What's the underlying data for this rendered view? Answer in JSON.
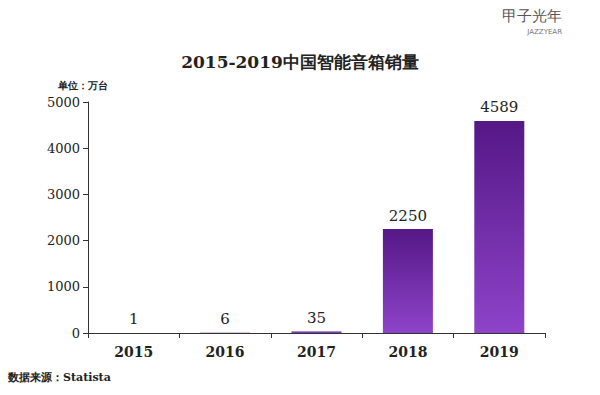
{
  "chart_data": {
    "type": "bar",
    "title": "2015-2019中国智能音箱销量",
    "y_label": "单位：万台",
    "categories": [
      "2015",
      "2016",
      "2017",
      "2018",
      "2019"
    ],
    "values": [
      1,
      6,
      35,
      2250,
      4589
    ],
    "color": "#7a22c0",
    "ylim": [
      0,
      5000
    ],
    "yticks": [
      0,
      1000,
      2000,
      3000,
      4000,
      5000
    ],
    "grid": false,
    "data_labels": true,
    "annotations": [
      "数据来源：Statista",
      "甲子光年",
      "JAZZYEAR"
    ]
  }
}
